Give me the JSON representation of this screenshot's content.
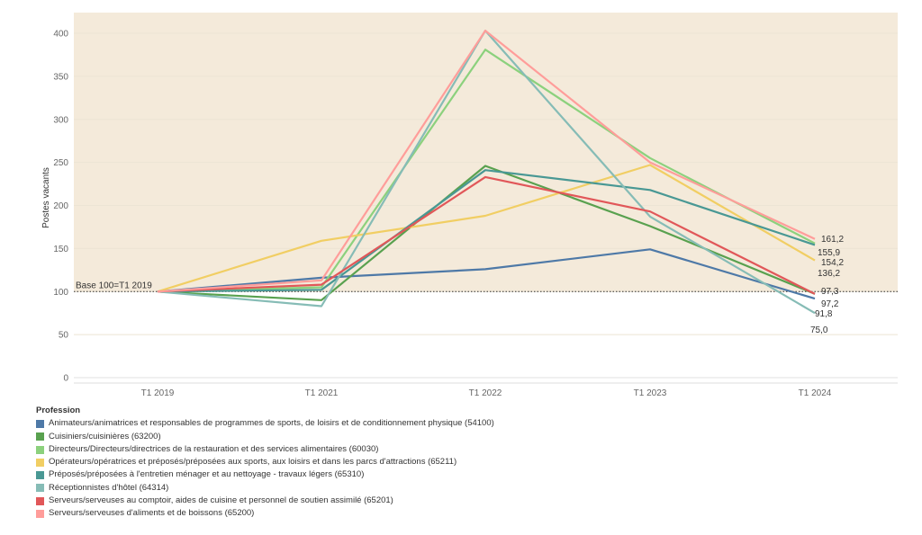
{
  "chart_data": {
    "type": "line",
    "ylabel": "Postes vacants",
    "ylim": [
      0,
      415
    ],
    "yticks": [
      0,
      50,
      100,
      150,
      200,
      250,
      300,
      350,
      400
    ],
    "categories": [
      "T1 2019",
      "T1 2021",
      "T1 2022",
      "T1 2023",
      "T1 2024"
    ],
    "reference_line": {
      "value": 100,
      "label": "Base 100=T1 2019"
    },
    "shaded_above": 100,
    "shade_color": "#f4eada",
    "legend_title": "Profession",
    "series": [
      {
        "name": "Animateurs/animatrices et responsables de programmes de sports, de loisirs et de conditionnement physique (54100)",
        "color": "#4e79a7",
        "values": [
          100,
          116,
          126,
          149,
          91.8
        ],
        "end_label": "91,8"
      },
      {
        "name": "Cuisiniers/cuisinières (63200)",
        "color": "#59a14f",
        "values": [
          100,
          90,
          246,
          176,
          97.3
        ],
        "end_label": "97,3"
      },
      {
        "name": "Directeurs/Directeurs/directrices de la restauration et des services alimentaires (60030)",
        "color": "#8cd17d",
        "values": [
          100,
          105,
          381,
          255,
          155.9
        ],
        "end_label": "155,9"
      },
      {
        "name": "Opérateurs/opératrices et préposés/préposées aux sports, aux loisirs et dans les parcs d'attractions (65211)",
        "color": "#f1ce63",
        "values": [
          100,
          159,
          188,
          247,
          136.2
        ],
        "end_label": "136,2"
      },
      {
        "name": "Préposés/préposées à l'entretien ménager et au nettoyage - travaux légers (65310)",
        "color": "#499894",
        "values": [
          100,
          102,
          241,
          218,
          154.2
        ],
        "end_label": "154,2"
      },
      {
        "name": "Réceptionnistes d'hôtel (64314)",
        "color": "#86bcb6",
        "values": [
          100,
          83,
          403,
          187,
          75.0
        ],
        "end_label": "75,0"
      },
      {
        "name": "Serveurs/serveuses au comptoir, aides de cuisine et personnel de soutien assimilé (65201)",
        "color": "#e15759",
        "values": [
          100,
          108,
          233,
          193,
          97.2
        ],
        "end_label": "97,2"
      },
      {
        "name": "Serveurs/serveuses d'aliments et de boissons (65200)",
        "color": "#ff9d9a",
        "values": [
          100,
          113,
          403,
          250,
          161.2
        ],
        "end_label": "161,2"
      }
    ]
  }
}
